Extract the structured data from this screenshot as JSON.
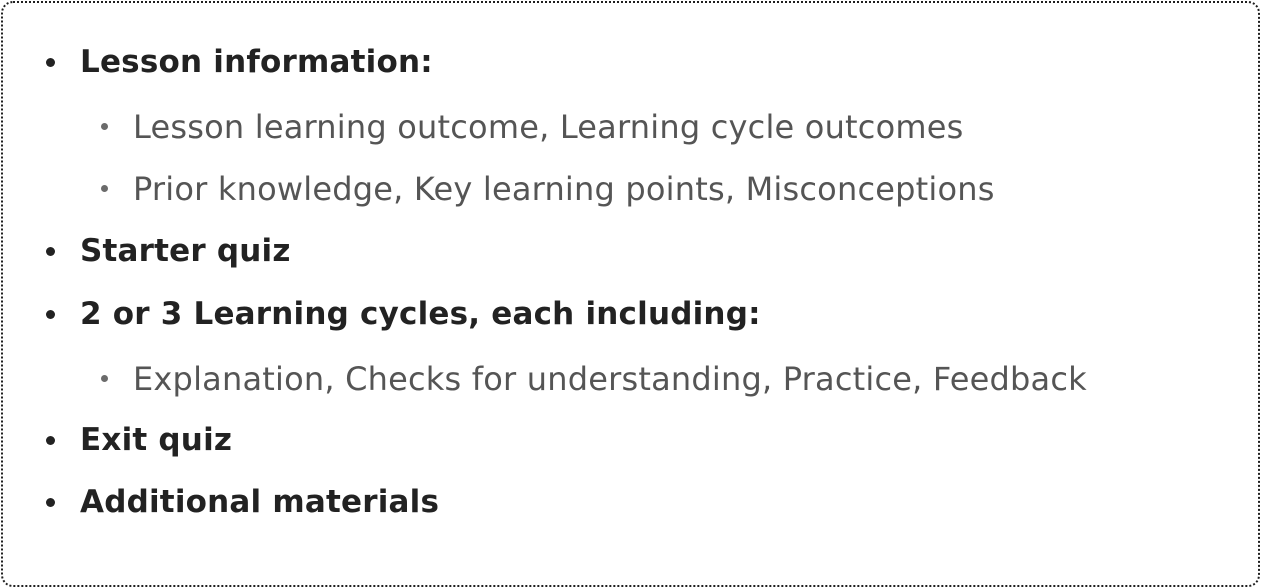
{
  "outline": {
    "lesson_information": "Lesson information:",
    "lesson_information_subitems": [
      "Lesson learning outcome, Learning cycle outcomes",
      "Prior knowledge, Key learning points, Misconceptions"
    ],
    "starter_quiz": "Starter quiz",
    "learning_cycles": "2 or 3 Learning cycles, each including:",
    "learning_cycles_subitems": [
      "Explanation, Checks for understanding, Practice, Feedback"
    ],
    "exit_quiz": "Exit quiz",
    "additional_materials": "Additional materials"
  }
}
